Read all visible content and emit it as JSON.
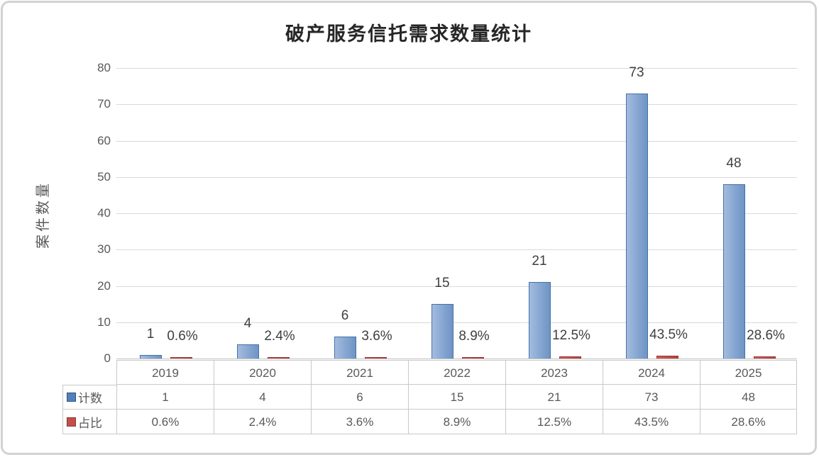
{
  "chart_data": {
    "type": "bar",
    "title": "破产服务信托需求数量统计",
    "ylabel": "案件数量",
    "xlabel": "",
    "categories": [
      "2019",
      "2020",
      "2021",
      "2022",
      "2023",
      "2024",
      "2025"
    ],
    "series": [
      {
        "name": "计数",
        "values": [
          1,
          4,
          6,
          15,
          21,
          73,
          48
        ],
        "labels": [
          "1",
          "4",
          "6",
          "15",
          "21",
          "73",
          "48"
        ],
        "fill": "#7b9cc9",
        "border": "#4472a8"
      },
      {
        "name": "占比",
        "values": [
          0.006,
          0.024,
          0.036,
          0.089,
          0.125,
          0.435,
          0.286
        ],
        "labels": [
          "0.6%",
          "2.4%",
          "3.6%",
          "8.9%",
          "12.5%",
          "43.5%",
          "28.6%"
        ],
        "fill": "#c0504d",
        "border": "#963634"
      }
    ],
    "ylim": [
      0,
      80
    ],
    "yticks": [
      "0",
      "10",
      "20",
      "30",
      "40",
      "50",
      "60",
      "70",
      "80"
    ],
    "grid": true,
    "legend_position": "data-table-row-headers",
    "data_table_shown": true
  },
  "colors": {
    "count_bar": "#7b9cc9",
    "count_bar_border": "#4472a8",
    "pct_bar": "#c0504d",
    "pct_bar_border": "#963634",
    "gridline": "#d9d9d9",
    "axis_text": "#595959",
    "title_text": "#262626",
    "table_border": "#c9c9c9"
  }
}
